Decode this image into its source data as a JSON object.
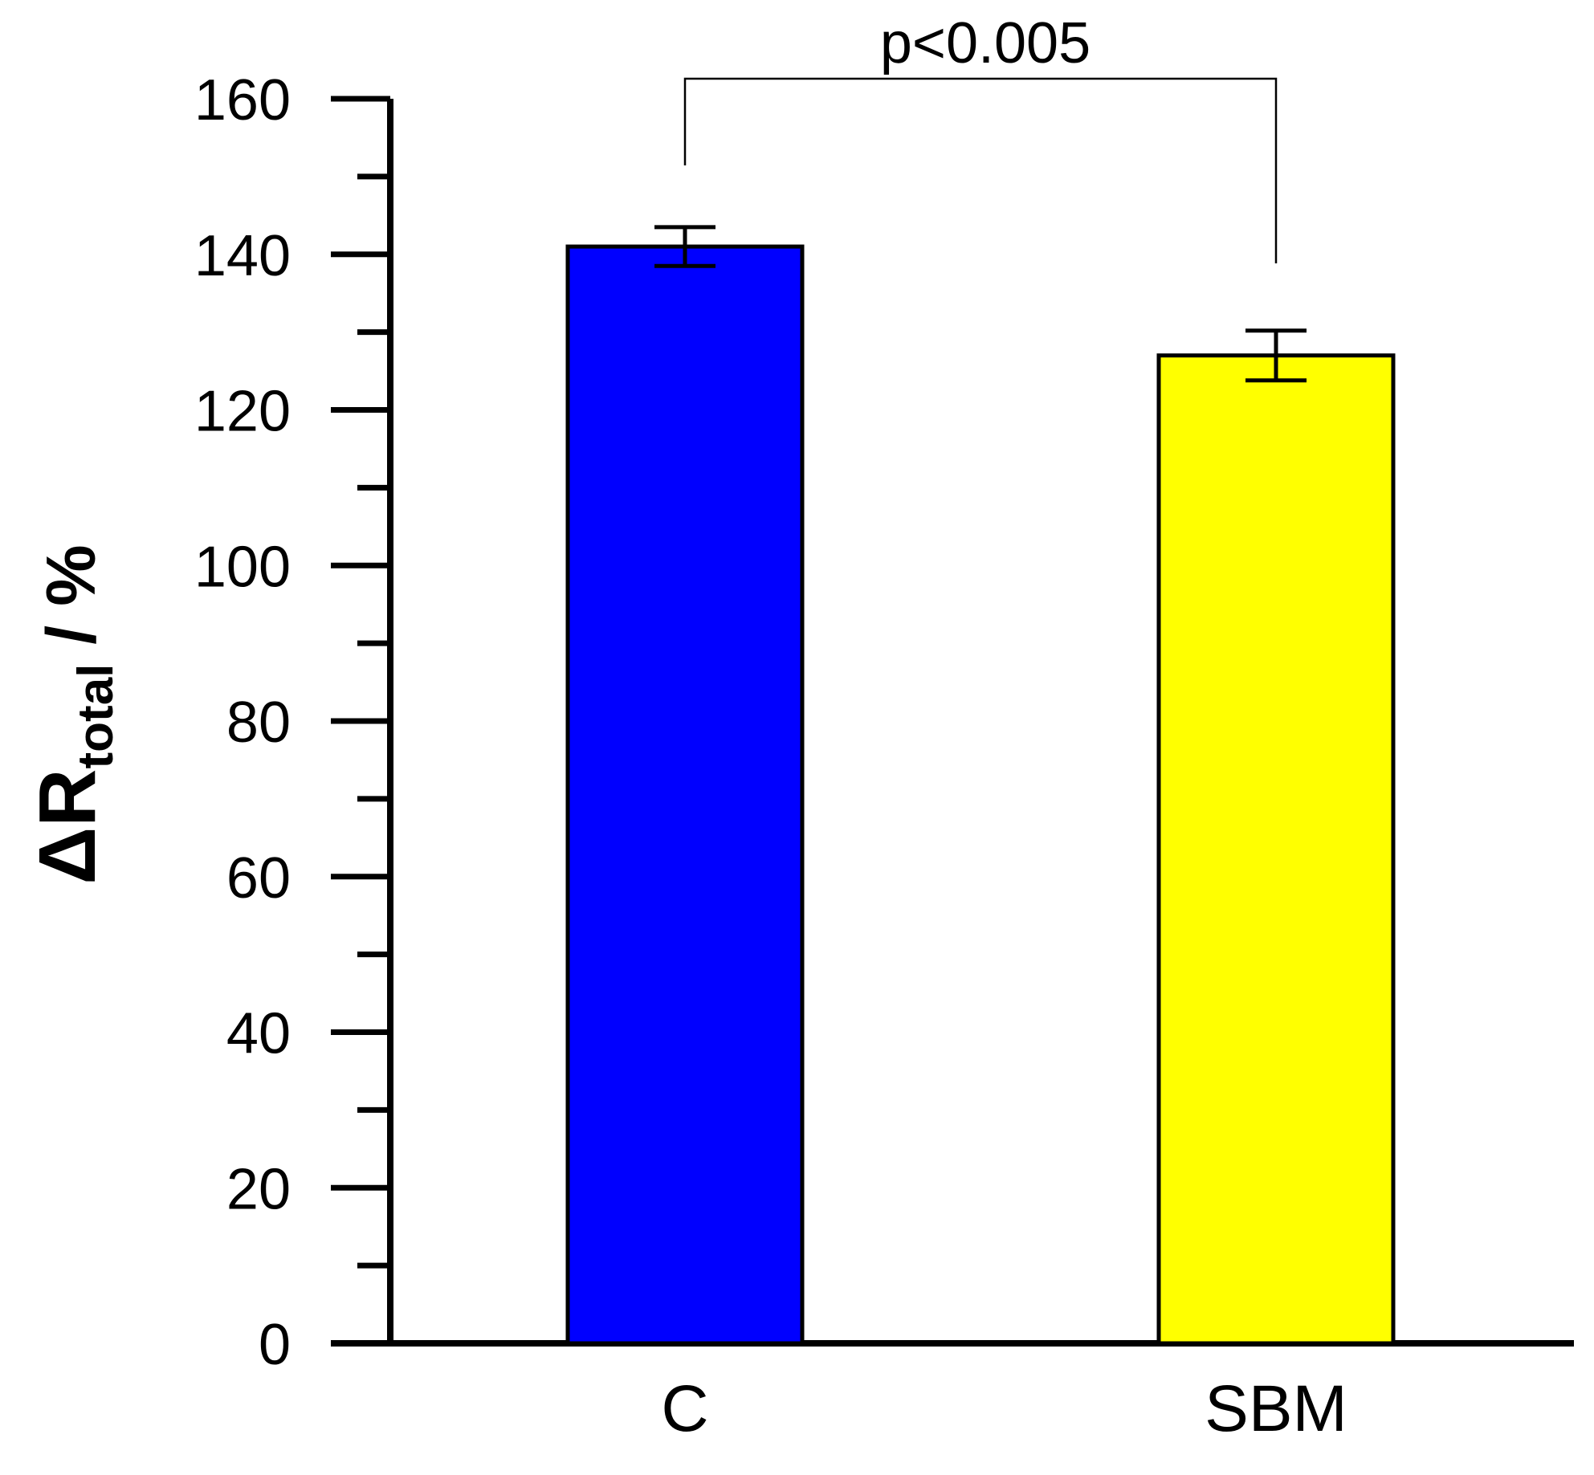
{
  "chart_data": {
    "type": "bar",
    "categories": [
      "C",
      "SBM"
    ],
    "values": [
      141,
      127
    ],
    "errors": [
      2.5,
      3.2
    ],
    "colors": [
      "#0000ff",
      "#ffff00"
    ],
    "ylabel": {
      "symbol": "ΔR",
      "subscript": "total",
      "suffix": " / %"
    },
    "ylim": [
      0,
      160
    ],
    "yticks": [
      0,
      20,
      40,
      60,
      80,
      100,
      120,
      140,
      160
    ],
    "minor_step": 10,
    "grid": false,
    "annotation": {
      "text": "p<0.005",
      "between": [
        "C",
        "SBM"
      ]
    }
  }
}
